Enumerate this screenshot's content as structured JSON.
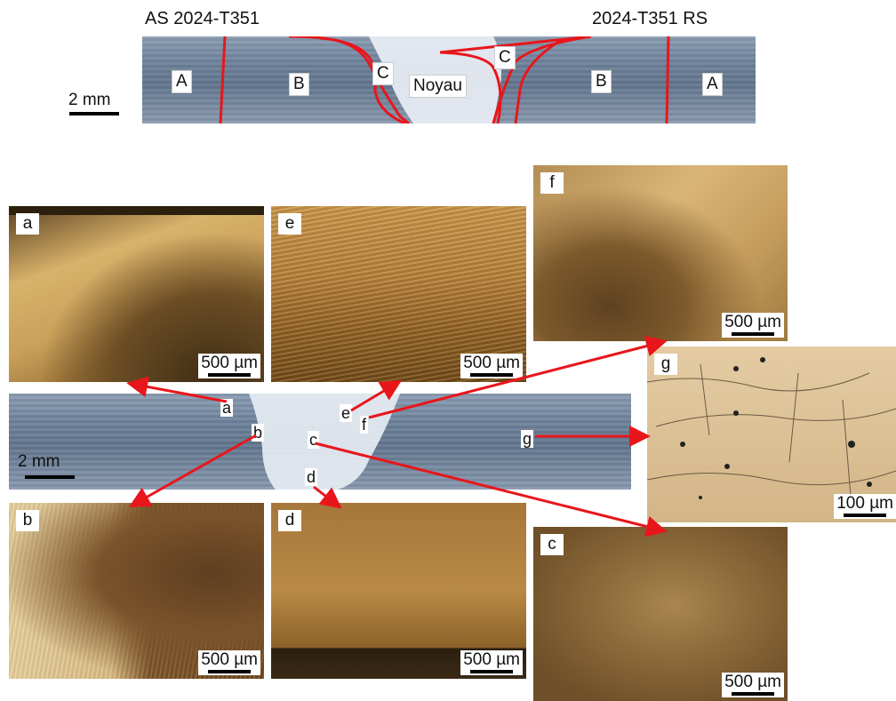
{
  "top_section": {
    "left_header": "AS 2024-T351",
    "right_header": "2024-T351 RS",
    "scale_label": "2 mm",
    "zones": {
      "a_left": "A",
      "b_left": "B",
      "c_left": "C",
      "core": "Noyau",
      "c_right": "C",
      "b_right": "B",
      "a_right": "A"
    }
  },
  "middle_section": {
    "scale_label": "2 mm",
    "points": {
      "a": "a",
      "b": "b",
      "c": "c",
      "d": "d",
      "e": "e",
      "f": "f",
      "g": "g"
    }
  },
  "panels": {
    "a": {
      "label": "a",
      "scale": "500 µm"
    },
    "e": {
      "label": "e",
      "scale": "500 µm"
    },
    "f": {
      "label": "f",
      "scale": "500 µm"
    },
    "g": {
      "label": "g",
      "scale": "100 µm"
    },
    "b": {
      "label": "b",
      "scale": "500 µm"
    },
    "d": {
      "label": "d",
      "scale": "500 µm"
    },
    "c": {
      "label": "c",
      "scale": "500 µm"
    }
  },
  "colors": {
    "arrow": "#e8161b",
    "zone_line": "#e8161b"
  }
}
